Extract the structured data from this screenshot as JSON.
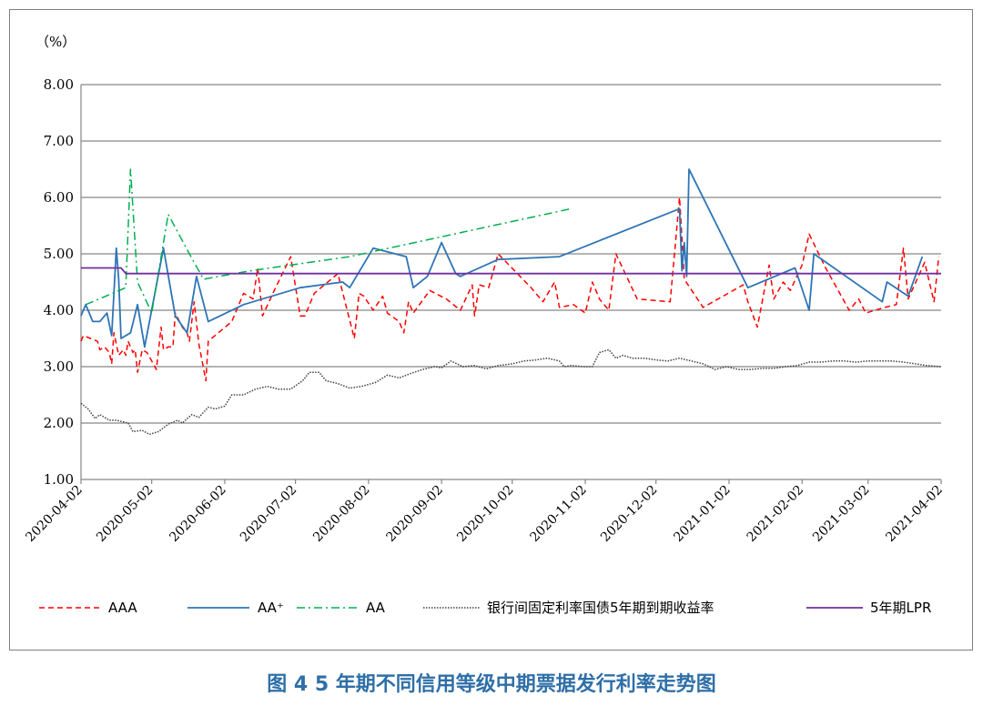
{
  "caption": "图 4  5 年期不同信用等级中期票据发行利率走势图",
  "chart_data": {
    "type": "line",
    "unit_label": "（%）",
    "ylim": [
      1.0,
      8.0
    ],
    "yticks": [
      "1.00",
      "2.00",
      "3.00",
      "4.00",
      "5.00",
      "6.00",
      "7.00",
      "8.00"
    ],
    "xlim": [
      "2020-04-02",
      "2021-04-02"
    ],
    "xticks": [
      "2020-04-02",
      "2020-05-02",
      "2020-06-02",
      "2020-07-02",
      "2020-08-02",
      "2020-09-02",
      "2020-10-02",
      "2020-11-02",
      "2020-12-02",
      "2021-01-02",
      "2021-02-02",
      "2021-03-02",
      "2021-04-02"
    ],
    "grid": "horizontal",
    "legend": "bottom",
    "series": [
      {
        "name": "AAA",
        "color": "#ff0000",
        "style": "dashed",
        "points": [
          [
            "2020-04-02",
            3.45
          ],
          [
            "2020-04-03",
            3.55
          ],
          [
            "2020-04-06",
            3.5
          ],
          [
            "2020-04-09",
            3.45
          ],
          [
            "2020-04-10",
            3.3
          ],
          [
            "2020-04-12",
            3.35
          ],
          [
            "2020-04-14",
            3.25
          ],
          [
            "2020-04-15",
            3.05
          ],
          [
            "2020-04-16",
            3.6
          ],
          [
            "2020-04-18",
            3.2
          ],
          [
            "2020-04-20",
            3.3
          ],
          [
            "2020-04-21",
            3.2
          ],
          [
            "2020-04-22",
            3.45
          ],
          [
            "2020-04-24",
            3.25
          ],
          [
            "2020-04-25",
            3.3
          ],
          [
            "2020-04-26",
            2.9
          ],
          [
            "2020-04-28",
            3.3
          ],
          [
            "2020-04-30",
            3.25
          ],
          [
            "2020-05-02",
            3.1
          ],
          [
            "2020-05-04",
            2.95
          ],
          [
            "2020-05-06",
            3.7
          ],
          [
            "2020-05-07",
            3.3
          ],
          [
            "2020-05-09",
            3.35
          ],
          [
            "2020-05-11",
            3.35
          ],
          [
            "2020-05-12",
            3.95
          ],
          [
            "2020-05-15",
            3.7
          ],
          [
            "2020-05-17",
            3.6
          ],
          [
            "2020-05-18",
            3.45
          ],
          [
            "2020-05-20",
            4.15
          ],
          [
            "2020-05-22",
            3.4
          ],
          [
            "2020-05-25",
            2.75
          ],
          [
            "2020-05-26",
            3.45
          ],
          [
            "2020-06-05",
            3.8
          ],
          [
            "2020-06-10",
            4.3
          ],
          [
            "2020-06-14",
            4.2
          ],
          [
            "2020-06-16",
            4.75
          ],
          [
            "2020-06-18",
            3.9
          ],
          [
            "2020-06-23",
            4.35
          ],
          [
            "2020-06-30",
            4.95
          ],
          [
            "2020-07-04",
            3.9
          ],
          [
            "2020-07-06",
            3.9
          ],
          [
            "2020-07-10",
            4.3
          ],
          [
            "2020-07-20",
            4.65
          ],
          [
            "2020-07-27",
            3.5
          ],
          [
            "2020-07-29",
            4.3
          ],
          [
            "2020-07-31",
            4.25
          ],
          [
            "2020-08-04",
            4.0
          ],
          [
            "2020-08-08",
            4.25
          ],
          [
            "2020-08-10",
            3.95
          ],
          [
            "2020-08-15",
            3.8
          ],
          [
            "2020-08-17",
            3.6
          ],
          [
            "2020-08-19",
            4.15
          ],
          [
            "2020-08-21",
            3.95
          ],
          [
            "2020-08-28",
            4.35
          ],
          [
            "2020-09-04",
            4.2
          ],
          [
            "2020-09-10",
            4.0
          ],
          [
            "2020-09-15",
            4.45
          ],
          [
            "2020-09-16",
            3.9
          ],
          [
            "2020-09-18",
            4.45
          ],
          [
            "2020-09-22",
            4.4
          ],
          [
            "2020-09-26",
            5.0
          ],
          [
            "2020-10-10",
            4.4
          ],
          [
            "2020-10-15",
            4.15
          ],
          [
            "2020-10-20",
            4.5
          ],
          [
            "2020-10-22",
            4.05
          ],
          [
            "2020-10-28",
            4.1
          ],
          [
            "2020-11-02",
            3.95
          ],
          [
            "2020-11-05",
            4.5
          ],
          [
            "2020-11-08",
            4.2
          ],
          [
            "2020-11-12",
            4.0
          ],
          [
            "2020-11-15",
            5.0
          ],
          [
            "2020-11-24",
            4.2
          ],
          [
            "2020-12-08",
            4.15
          ],
          [
            "2020-12-12",
            6.0
          ],
          [
            "2020-12-14",
            4.55
          ],
          [
            "2020-12-22",
            4.05
          ],
          [
            "2021-01-08",
            4.45
          ],
          [
            "2021-01-10",
            4.15
          ],
          [
            "2021-01-14",
            3.7
          ],
          [
            "2021-01-19",
            4.8
          ],
          [
            "2021-01-21",
            4.2
          ],
          [
            "2021-01-25",
            4.5
          ],
          [
            "2021-01-28",
            4.35
          ],
          [
            "2021-02-02",
            4.8
          ],
          [
            "2021-02-05",
            5.35
          ],
          [
            "2021-02-12",
            4.75
          ],
          [
            "2021-02-22",
            4.0
          ],
          [
            "2021-02-26",
            4.2
          ],
          [
            "2021-03-01",
            3.95
          ],
          [
            "2021-03-09",
            4.05
          ],
          [
            "2021-03-14",
            4.1
          ],
          [
            "2021-03-17",
            5.1
          ],
          [
            "2021-03-19",
            4.2
          ],
          [
            "2021-03-26",
            4.85
          ],
          [
            "2021-03-30",
            4.15
          ],
          [
            "2021-04-01",
            4.95
          ]
        ]
      },
      {
        "name": "AA⁺",
        "color": "#2e75b6",
        "style": "solid",
        "points": [
          [
            "2020-04-02",
            3.9
          ],
          [
            "2020-04-04",
            4.1
          ],
          [
            "2020-04-07",
            3.8
          ],
          [
            "2020-04-10",
            3.8
          ],
          [
            "2020-04-13",
            3.95
          ],
          [
            "2020-04-15",
            3.55
          ],
          [
            "2020-04-17",
            5.1
          ],
          [
            "2020-04-18",
            4.55
          ],
          [
            "2020-04-19",
            3.5
          ],
          [
            "2020-04-23",
            3.6
          ],
          [
            "2020-04-26",
            4.1
          ],
          [
            "2020-04-29",
            3.35
          ],
          [
            "2020-05-07",
            5.1
          ],
          [
            "2020-05-12",
            3.9
          ],
          [
            "2020-05-17",
            3.6
          ],
          [
            "2020-05-21",
            4.6
          ],
          [
            "2020-05-26",
            3.8
          ],
          [
            "2020-06-10",
            4.1
          ],
          [
            "2020-07-04",
            4.4
          ],
          [
            "2020-07-22",
            4.5
          ],
          [
            "2020-07-25",
            4.4
          ],
          [
            "2020-08-04",
            5.1
          ],
          [
            "2020-08-18",
            4.95
          ],
          [
            "2020-08-21",
            4.4
          ],
          [
            "2020-08-27",
            4.6
          ],
          [
            "2020-09-02",
            5.2
          ],
          [
            "2020-09-08",
            4.65
          ],
          [
            "2020-09-10",
            4.6
          ],
          [
            "2020-09-26",
            4.9
          ],
          [
            "2020-10-22",
            4.95
          ],
          [
            "2020-12-12",
            5.8
          ],
          [
            "2020-12-13",
            4.7
          ],
          [
            "2020-12-14",
            5.2
          ],
          [
            "2020-12-15",
            4.6
          ],
          [
            "2020-12-16",
            6.5
          ],
          [
            "2021-01-10",
            4.4
          ],
          [
            "2021-01-30",
            4.75
          ],
          [
            "2021-02-05",
            4.0
          ],
          [
            "2021-02-07",
            5.0
          ],
          [
            "2021-03-08",
            4.15
          ],
          [
            "2021-03-10",
            4.5
          ],
          [
            "2021-03-19",
            4.25
          ],
          [
            "2021-03-25",
            4.95
          ]
        ]
      },
      {
        "name": "AA",
        "color": "#00b050",
        "style": "dashdot",
        "points": [
          [
            "2020-04-04",
            4.1
          ],
          [
            "2020-04-21",
            4.4
          ],
          [
            "2020-04-23",
            6.5
          ],
          [
            "2020-04-26",
            4.5
          ],
          [
            "2020-05-02",
            3.95
          ],
          [
            "2020-05-09",
            5.7
          ],
          [
            "2020-05-18",
            5.0
          ],
          [
            "2020-05-24",
            4.55
          ],
          [
            "2020-06-13",
            4.7
          ],
          [
            "2020-07-25",
            4.95
          ],
          [
            "2020-10-27",
            5.8
          ]
        ]
      },
      {
        "name": "银行间固定利率国债5年期到期收益率",
        "color": "#404040",
        "style": "dotted",
        "points": [
          [
            "2020-04-02",
            2.35
          ],
          [
            "2020-04-05",
            2.25
          ],
          [
            "2020-04-08",
            2.08
          ],
          [
            "2020-04-10",
            2.15
          ],
          [
            "2020-04-14",
            2.05
          ],
          [
            "2020-04-17",
            2.05
          ],
          [
            "2020-04-22",
            2.0
          ],
          [
            "2020-04-24",
            1.85
          ],
          [
            "2020-04-28",
            1.87
          ],
          [
            "2020-05-01",
            1.8
          ],
          [
            "2020-05-05",
            1.85
          ],
          [
            "2020-05-09",
            1.98
          ],
          [
            "2020-05-13",
            2.05
          ],
          [
            "2020-05-15",
            2.0
          ],
          [
            "2020-05-19",
            2.15
          ],
          [
            "2020-05-22",
            2.1
          ],
          [
            "2020-05-26",
            2.28
          ],
          [
            "2020-05-29",
            2.25
          ],
          [
            "2020-06-02",
            2.3
          ],
          [
            "2020-06-05",
            2.5
          ],
          [
            "2020-06-10",
            2.5
          ],
          [
            "2020-06-15",
            2.6
          ],
          [
            "2020-06-20",
            2.65
          ],
          [
            "2020-06-25",
            2.6
          ],
          [
            "2020-06-30",
            2.6
          ],
          [
            "2020-07-05",
            2.75
          ],
          [
            "2020-07-08",
            2.9
          ],
          [
            "2020-07-12",
            2.9
          ],
          [
            "2020-07-15",
            2.75
          ],
          [
            "2020-07-20",
            2.7
          ],
          [
            "2020-07-25",
            2.62
          ],
          [
            "2020-07-30",
            2.65
          ],
          [
            "2020-08-05",
            2.72
          ],
          [
            "2020-08-10",
            2.85
          ],
          [
            "2020-08-15",
            2.8
          ],
          [
            "2020-08-20",
            2.88
          ],
          [
            "2020-08-25",
            2.95
          ],
          [
            "2020-08-30",
            3.0
          ],
          [
            "2020-09-02",
            2.98
          ],
          [
            "2020-09-06",
            3.1
          ],
          [
            "2020-09-11",
            3.0
          ],
          [
            "2020-09-16",
            3.02
          ],
          [
            "2020-09-21",
            2.96
          ],
          [
            "2020-09-26",
            3.02
          ],
          [
            "2020-10-02",
            3.05
          ],
          [
            "2020-10-07",
            3.1
          ],
          [
            "2020-10-12",
            3.12
          ],
          [
            "2020-10-17",
            3.15
          ],
          [
            "2020-10-22",
            3.1
          ],
          [
            "2020-10-24",
            3.0
          ],
          [
            "2020-10-27",
            3.02
          ],
          [
            "2020-11-01",
            3.0
          ],
          [
            "2020-11-05",
            3.0
          ],
          [
            "2020-11-08",
            3.25
          ],
          [
            "2020-11-12",
            3.3
          ],
          [
            "2020-11-15",
            3.15
          ],
          [
            "2020-11-18",
            3.2
          ],
          [
            "2020-11-22",
            3.15
          ],
          [
            "2020-11-27",
            3.15
          ],
          [
            "2020-12-02",
            3.12
          ],
          [
            "2020-12-07",
            3.1
          ],
          [
            "2020-12-12",
            3.15
          ],
          [
            "2020-12-17",
            3.1
          ],
          [
            "2020-12-22",
            3.05
          ],
          [
            "2020-12-27",
            2.95
          ],
          [
            "2021-01-01",
            3.0
          ],
          [
            "2021-01-06",
            2.95
          ],
          [
            "2021-01-11",
            2.95
          ],
          [
            "2021-01-16",
            2.97
          ],
          [
            "2021-01-21",
            2.97
          ],
          [
            "2021-01-26",
            3.0
          ],
          [
            "2021-01-31",
            3.02
          ],
          [
            "2021-02-05",
            3.08
          ],
          [
            "2021-02-10",
            3.08
          ],
          [
            "2021-02-15",
            3.1
          ],
          [
            "2021-02-20",
            3.1
          ],
          [
            "2021-02-25",
            3.08
          ],
          [
            "2021-03-02",
            3.1
          ],
          [
            "2021-03-07",
            3.1
          ],
          [
            "2021-03-12",
            3.1
          ],
          [
            "2021-03-17",
            3.08
          ],
          [
            "2021-03-22",
            3.05
          ],
          [
            "2021-03-27",
            3.02
          ],
          [
            "2021-04-02",
            3.0
          ]
        ]
      },
      {
        "name": "5年期LPR",
        "color": "#7030a0",
        "style": "solid",
        "points": [
          [
            "2020-04-02",
            4.75
          ],
          [
            "2020-04-19",
            4.75
          ],
          [
            "2020-04-21",
            4.65
          ],
          [
            "2021-04-02",
            4.65
          ]
        ]
      }
    ]
  }
}
